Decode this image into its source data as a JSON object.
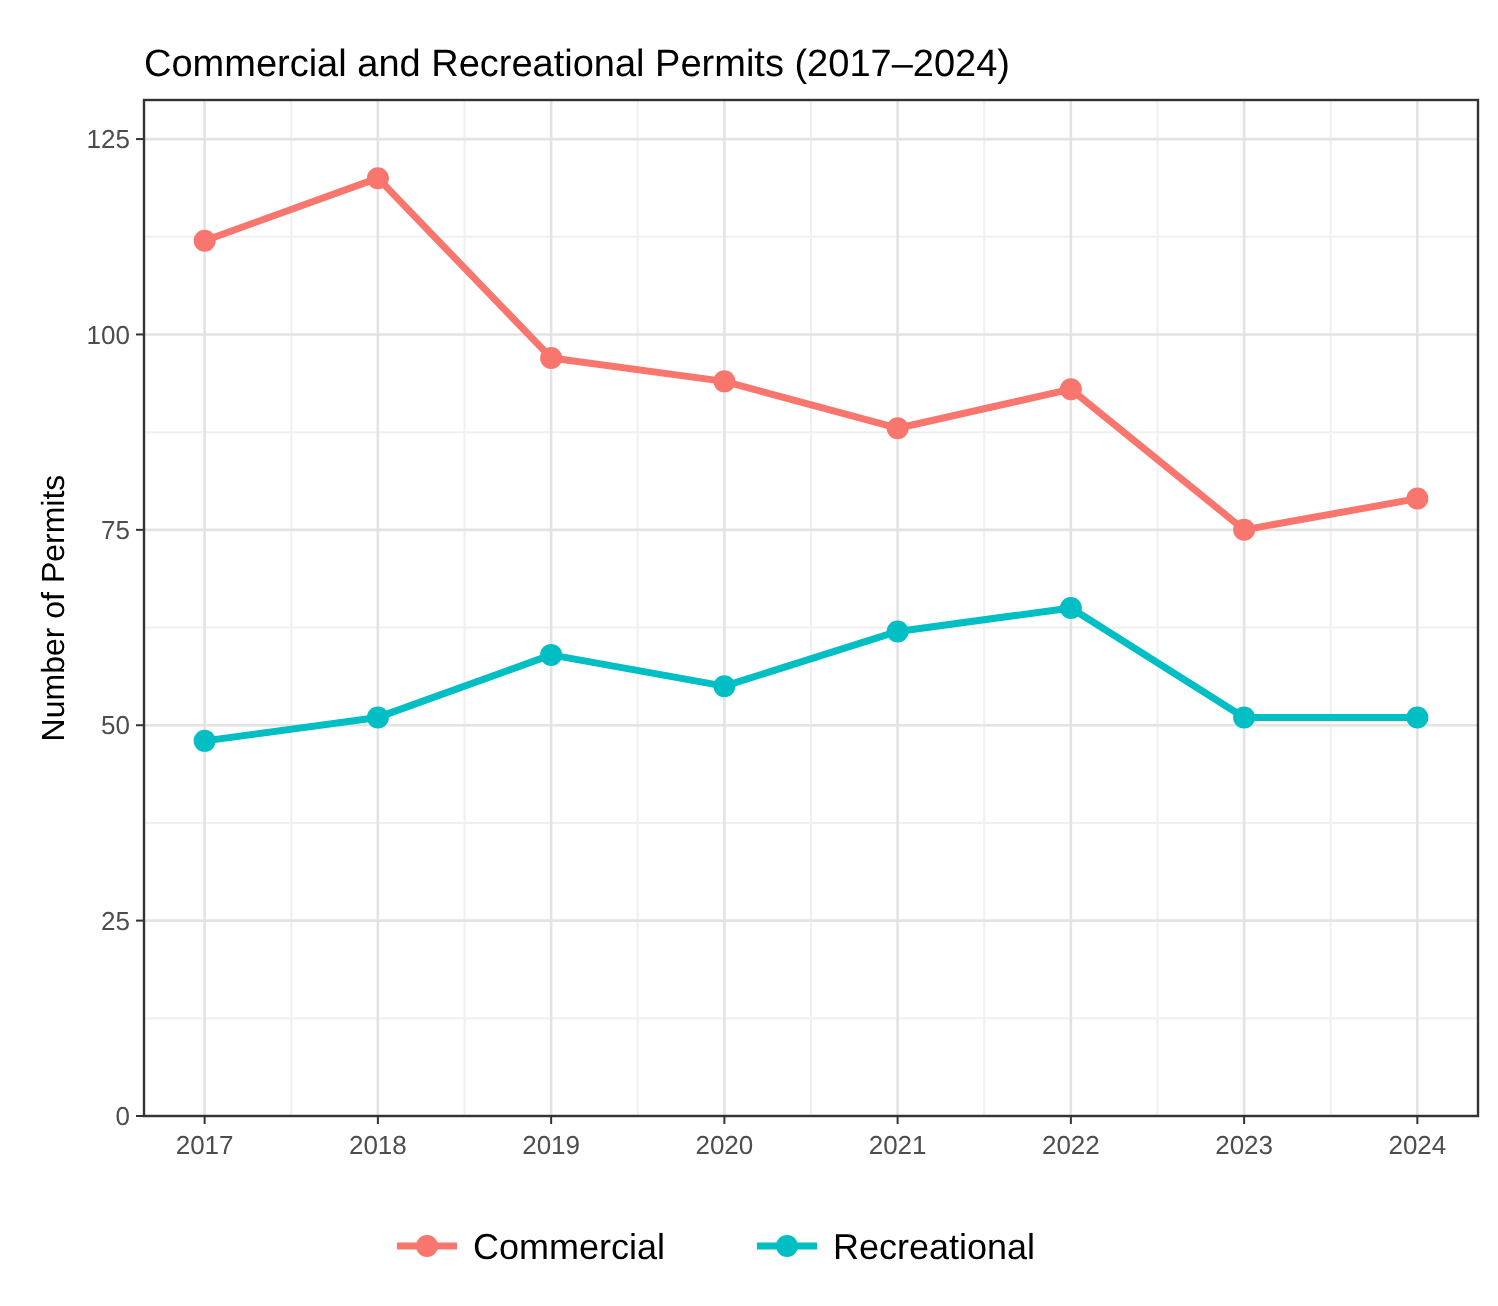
{
  "chart_data": {
    "type": "line",
    "title": "Commercial and Recreational Permits (2017–2024)",
    "ylabel": "Number of Permits",
    "x": [
      2017,
      2018,
      2019,
      2020,
      2021,
      2022,
      2023,
      2024
    ],
    "series": [
      {
        "name": "Commercial",
        "color": "#f8766d",
        "values": [
          112,
          120,
          97,
          94,
          88,
          93,
          75,
          79
        ]
      },
      {
        "name": "Recreational",
        "color": "#00bfc4",
        "values": [
          48,
          51,
          59,
          55,
          62,
          65,
          51,
          51
        ]
      }
    ],
    "xlim": [
      2016.65,
      2024.35
    ],
    "xticks": [
      2017,
      2018,
      2019,
      2020,
      2021,
      2022,
      2023,
      2024
    ],
    "ylim": [
      0,
      130
    ],
    "yticks": [
      0,
      25,
      50,
      75,
      100,
      125
    ],
    "grid": true,
    "legend": "bottom",
    "marker": "circle",
    "line_style": "solid"
  }
}
